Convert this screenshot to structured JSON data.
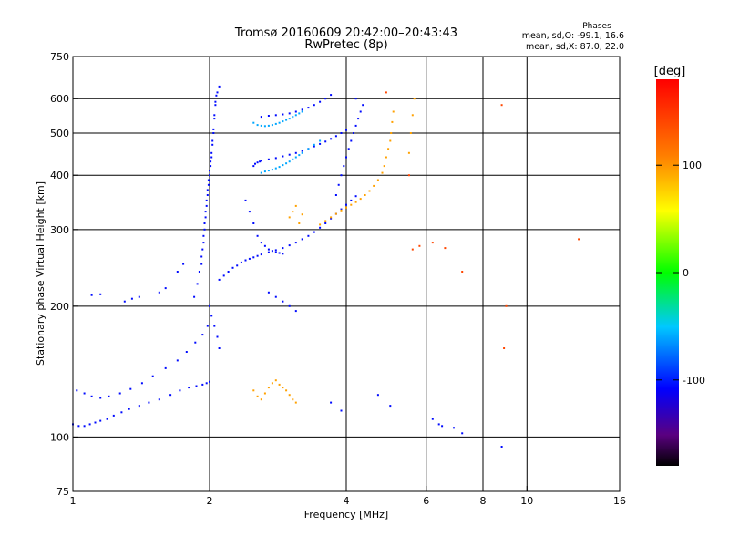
{
  "chart_data": {
    "type": "scatter",
    "title": "Tromsø 20160609 20:42:00–20:43:43",
    "subtitle": "RwPretec (8p)",
    "xlabel": "Frequency [MHz]",
    "ylabel": "Stationary phase Virtual Height [km]",
    "x_scale": "log",
    "y_scale": "log",
    "xlim": [
      1,
      16
    ],
    "ylim": [
      75,
      750
    ],
    "x_ticks": [
      1,
      2,
      4,
      6,
      8,
      10,
      16
    ],
    "x_tick_labels": [
      "1",
      "2",
      "4",
      "6",
      "8",
      "10",
      "16"
    ],
    "x_grid": [
      2,
      4,
      6,
      8,
      10
    ],
    "y_ticks": [
      75,
      100,
      200,
      300,
      400,
      500,
      600,
      750
    ],
    "y_tick_labels": [
      "75",
      "100",
      "200",
      "300",
      "400",
      "500",
      "600",
      "750"
    ],
    "y_grid": [
      100,
      200,
      300,
      400,
      500,
      600
    ],
    "grid": true,
    "stats": {
      "heading": "Phases",
      "line_o": "mean, sd,O: -99.1, 16.6",
      "line_x": "mean, sd,X:  87.0, 22.0"
    },
    "colorbar": {
      "label": "[deg]",
      "range": [
        -180,
        180
      ],
      "ticks": [
        100,
        0,
        -100
      ],
      "tick_labels": [
        "100",
        "0",
        "-100"
      ]
    },
    "series": [
      {
        "color_phase": -105,
        "x": [
          1.0,
          1.03,
          1.06,
          1.09,
          1.12,
          1.15,
          1.19,
          1.23,
          1.28,
          1.33,
          1.4,
          1.47,
          1.55,
          1.64,
          1.72,
          1.8,
          1.87,
          1.93,
          1.97,
          2.0,
          1.02,
          1.06,
          1.1,
          1.15,
          1.2,
          1.27,
          1.34,
          1.42,
          1.5,
          1.6,
          1.7,
          1.78,
          1.86,
          1.93,
          1.98,
          1.85,
          1.88,
          1.9,
          1.92,
          1.94,
          1.95,
          1.96,
          1.97,
          1.98,
          1.99,
          2.0,
          2.01,
          2.02,
          2.03,
          2.04,
          2.05,
          2.06,
          2.07,
          1.92,
          1.93,
          1.94,
          1.95,
          1.96,
          1.97,
          1.98,
          1.99,
          2.0,
          2.01,
          2.02,
          2.03,
          2.04,
          2.05,
          2.06,
          2.08,
          2.1,
          2.0,
          2.02,
          2.05,
          2.08,
          2.1,
          2.1,
          2.15,
          2.2,
          2.25,
          2.3,
          2.35,
          2.4,
          2.45,
          2.5,
          2.55,
          2.6,
          2.7,
          2.8,
          2.9,
          3.0,
          3.1,
          3.2,
          3.3,
          3.4,
          3.5,
          3.6,
          3.7,
          3.8,
          3.9,
          4.0,
          4.1,
          4.2,
          2.5,
          2.52,
          2.55,
          2.58,
          2.6,
          2.7,
          2.8,
          2.9,
          3.0,
          3.1,
          3.2,
          3.3,
          3.4,
          3.5,
          3.6,
          3.7,
          3.8,
          3.9,
          4.0,
          2.6,
          2.7,
          2.8,
          2.9,
          3.0,
          3.1,
          3.2,
          3.3,
          3.4,
          3.5,
          3.6,
          3.7,
          3.8,
          3.85,
          3.9,
          3.95,
          4.0,
          4.05,
          4.1,
          4.15,
          4.2,
          4.25,
          4.3,
          4.35,
          2.4,
          2.45,
          2.5,
          2.55,
          2.6,
          2.65,
          2.7,
          2.75,
          2.8,
          2.85,
          2.9,
          1.1,
          1.15,
          1.3,
          1.35,
          1.4,
          1.55,
          1.6,
          1.7,
          1.75,
          2.7,
          2.8,
          2.9,
          3.0,
          3.1,
          4.2,
          4.7,
          5.0,
          6.2,
          6.4,
          6.5,
          6.9,
          7.2,
          8.8,
          3.9,
          3.7
        ],
        "y": [
          107,
          106,
          106,
          107,
          108,
          109,
          110,
          112,
          114,
          116,
          118,
          120,
          122,
          125,
          128,
          130,
          131,
          132,
          133,
          134,
          128,
          126,
          124,
          123,
          124,
          126,
          129,
          133,
          138,
          144,
          150,
          157,
          165,
          172,
          180,
          210,
          225,
          240,
          260,
          280,
          300,
          320,
          340,
          360,
          380,
          400,
          420,
          440,
          470,
          500,
          540,
          580,
          610,
          250,
          270,
          290,
          310,
          330,
          350,
          370,
          390,
          410,
          430,
          450,
          480,
          510,
          550,
          590,
          620,
          640,
          200,
          190,
          180,
          170,
          160,
          230,
          235,
          240,
          245,
          248,
          252,
          255,
          257,
          259,
          261,
          263,
          266,
          269,
          272,
          276,
          280,
          285,
          290,
          296,
          303,
          310,
          318,
          326,
          334,
          342,
          350,
          358,
          420,
          425,
          428,
          430,
          432,
          435,
          438,
          442,
          446,
          450,
          455,
          460,
          466,
          472,
          478,
          485,
          492,
          500,
          508,
          545,
          548,
          550,
          552,
          555,
          560,
          566,
          572,
          580,
          590,
          600,
          612,
          360,
          380,
          400,
          420,
          440,
          460,
          480,
          500,
          520,
          540,
          560,
          580,
          350,
          330,
          310,
          290,
          280,
          275,
          270,
          268,
          266,
          265,
          264,
          212,
          213,
          205,
          208,
          210,
          215,
          220,
          240,
          250,
          215,
          210,
          205,
          200,
          195,
          600,
          125,
          118,
          110,
          107,
          106,
          105,
          102,
          95,
          115,
          120
        ]
      },
      {
        "color_phase": -60,
        "x": [
          2.5,
          2.55,
          2.6,
          2.65,
          2.7,
          2.75,
          2.8,
          2.85,
          2.9,
          2.95,
          3.0,
          3.05,
          3.1,
          3.15,
          3.2,
          2.6,
          2.65,
          2.7,
          2.75,
          2.8,
          2.85,
          2.9,
          2.95,
          3.0,
          3.05,
          3.1,
          3.15,
          3.2,
          3.3,
          3.4,
          3.5
        ],
        "y": [
          528,
          522,
          520,
          519,
          520,
          522,
          525,
          528,
          532,
          536,
          540,
          545,
          550,
          555,
          560,
          405,
          408,
          410,
          412,
          415,
          418,
          422,
          426,
          430,
          435,
          440,
          445,
          450,
          460,
          470,
          480
        ]
      },
      {
        "color_phase": 95,
        "x": [
          3.5,
          3.6,
          3.7,
          3.8,
          3.9,
          4.0,
          4.1,
          4.2,
          4.3,
          4.4,
          4.5,
          4.6,
          4.7,
          4.8,
          4.85,
          4.9,
          4.95,
          5.0,
          5.02,
          5.05,
          5.08,
          2.5,
          2.55,
          2.6,
          2.65,
          2.7,
          2.75,
          2.8,
          2.85,
          2.9,
          2.95,
          3.0,
          3.05,
          3.1,
          3.0,
          3.05,
          3.1,
          3.15,
          3.2,
          5.5,
          5.55,
          5.6,
          5.65
        ],
        "y": [
          308,
          314,
          320,
          326,
          332,
          337,
          342,
          347,
          353,
          360,
          368,
          378,
          390,
          405,
          420,
          440,
          460,
          480,
          500,
          530,
          560,
          128,
          124,
          122,
          126,
          130,
          133,
          135,
          132,
          130,
          128,
          125,
          122,
          120,
          320,
          330,
          340,
          310,
          325,
          450,
          500,
          550,
          600
        ]
      },
      {
        "color_phase": 140,
        "x": [
          4.9,
          5.6,
          5.8,
          6.2,
          6.6,
          7.2,
          8.8,
          8.9,
          9.0,
          13.0,
          5.5
        ],
        "y": [
          620,
          270,
          275,
          280,
          272,
          240,
          580,
          160,
          200,
          285,
          400
        ]
      }
    ]
  }
}
